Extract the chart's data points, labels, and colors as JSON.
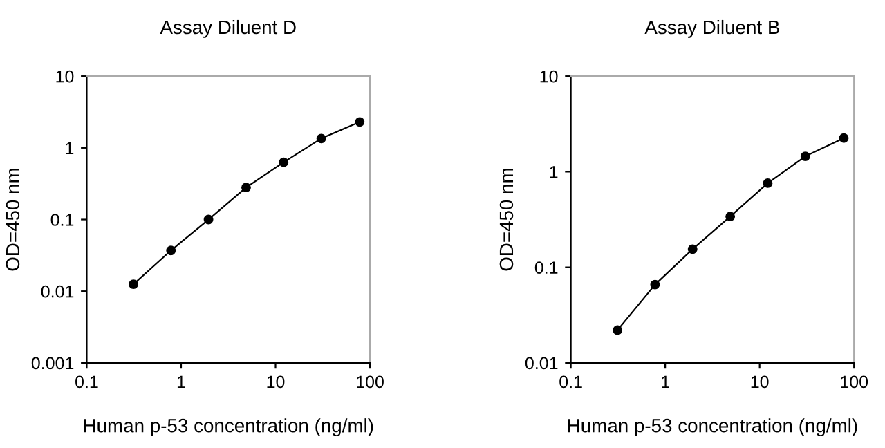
{
  "chart_data": [
    {
      "type": "line",
      "title": "Assay Diluent D",
      "xlabel": "Human p-53 concentration (ng/ml)",
      "ylabel": "OD=450 nm",
      "log": "xy",
      "marker": "circle",
      "line_style": "solid",
      "grid": false,
      "legend": false,
      "x": [
        0.3125,
        0.78,
        1.95,
        4.88,
        12.2,
        30.5,
        78
      ],
      "series": [
        {
          "color": "#000000",
          "values": [
            0.0125,
            0.037,
            0.1,
            0.28,
            0.63,
            1.35,
            2.3
          ]
        }
      ],
      "xlim": [
        0.1,
        100
      ],
      "xticks": [
        0.1,
        1,
        10,
        100
      ],
      "ylim": [
        0.001,
        10
      ],
      "yticks": [
        0.001,
        0.01,
        0.1,
        1,
        10
      ]
    },
    {
      "type": "line",
      "title": "Assay Diluent B",
      "xlabel": "Human p-53 concentration (ng/ml)",
      "ylabel": "OD=450 nm",
      "log": "xy",
      "marker": "circle",
      "line_style": "solid",
      "grid": false,
      "legend": false,
      "x": [
        0.3125,
        0.78,
        1.95,
        4.88,
        12.2,
        30.5,
        78
      ],
      "series": [
        {
          "color": "#000000",
          "values": [
            0.022,
            0.066,
            0.155,
            0.34,
            0.76,
            1.45,
            2.25
          ]
        }
      ],
      "xlim": [
        0.1,
        100
      ],
      "xticks": [
        0.1,
        1,
        10,
        100
      ],
      "ylim": [
        0.01,
        10
      ],
      "yticks": [
        0.01,
        0.1,
        1,
        10
      ]
    }
  ]
}
